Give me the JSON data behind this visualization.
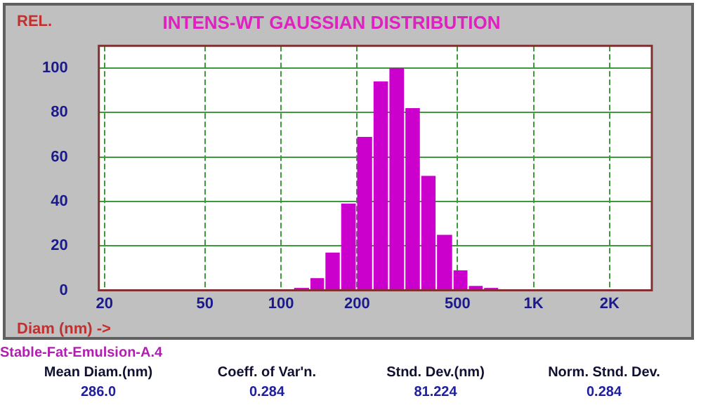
{
  "chart_data": {
    "type": "histogram",
    "title": "INTENS-WT GAUSSIAN DISTRIBUTION",
    "xlabel": "Diam (nm) ->",
    "ylabel": "REL.",
    "bins": [
      112,
      130,
      149,
      172,
      199,
      231,
      267,
      309,
      357,
      412,
      479,
      551,
      633,
      729
    ],
    "values": [
      1,
      5.5,
      17,
      39,
      69,
      94,
      100,
      82,
      51.5,
      25,
      9,
      2,
      0.6
    ],
    "color": "#cc00cc",
    "log": "x",
    "xlim": [
      19,
      2940
    ],
    "xticks": [
      20,
      50,
      100,
      200,
      500,
      {
        "value": 1000,
        "label": "1K"
      },
      {
        "value": 2000,
        "label": "2K"
      }
    ],
    "ylim": [
      0,
      110
    ],
    "yticks": [
      0,
      20,
      40,
      60,
      80,
      100
    ],
    "grid": true,
    "annotations": [
      "Stable-Fat-Emulsion-A.4",
      "Mean Diam.(nm)",
      "286.0",
      "Coeff. of Var'n.",
      "0.284",
      "Stnd. Dev.(nm)",
      "81.224",
      "Norm. Stnd. Dev.",
      "0.284"
    ]
  }
}
